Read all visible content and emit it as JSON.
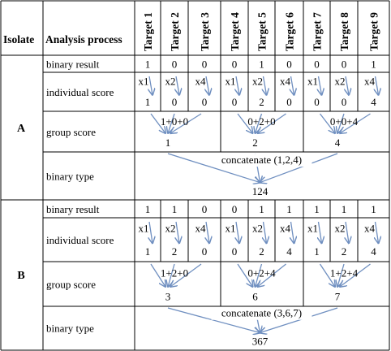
{
  "table": {
    "header": {
      "isolate_label": "Isolate",
      "process_label": "Analysis process",
      "targets": [
        "Target 1",
        "Target 2",
        "Target 3",
        "Target 4",
        "Target 5",
        "Target 6",
        "Target 7",
        "Target 8",
        "Target 9"
      ]
    },
    "isolates": [
      {
        "name": "A",
        "row_labels": {
          "binary": "binary result",
          "individual": "individual score",
          "group": "group score",
          "type": "binary type"
        },
        "binary_result": [
          "1",
          "0",
          "0",
          "0",
          "1",
          "0",
          "0",
          "0",
          "1"
        ],
        "multipliers": [
          "x1",
          "x2",
          "x4",
          "x1",
          "x2",
          "x4",
          "x1",
          "x2",
          "x4"
        ],
        "individual_scores": [
          "1",
          "0",
          "0",
          "0",
          "2",
          "0",
          "0",
          "0",
          "4"
        ],
        "group_sums": [
          "1+0+0",
          "0+2+0",
          "0+0+4"
        ],
        "group_scores": [
          "1",
          "2",
          "4"
        ],
        "concatenate_text": "concatenate (1,2,4)",
        "binary_type": "124"
      },
      {
        "name": "B",
        "row_labels": {
          "binary": "binary result",
          "individual": "individual score",
          "group": "group score",
          "type": "binary type"
        },
        "binary_result": [
          "1",
          "1",
          "0",
          "0",
          "1",
          "1",
          "1",
          "1",
          "1"
        ],
        "multipliers": [
          "x1",
          "x2",
          "x4",
          "x1",
          "x2",
          "x4",
          "x1",
          "x2",
          "x4"
        ],
        "individual_scores": [
          "1",
          "2",
          "0",
          "0",
          "2",
          "4",
          "1",
          "2",
          "4"
        ],
        "group_sums": [
          "1+2+0",
          "0+2+4",
          "1+2+4"
        ],
        "group_scores": [
          "3",
          "6",
          "7"
        ],
        "concatenate_text": "concatenate (3,6,7)",
        "binary_type": "367"
      }
    ]
  },
  "colors": {
    "arrow": "#6f8fc0",
    "grid": "#000000",
    "text": "#000000"
  }
}
